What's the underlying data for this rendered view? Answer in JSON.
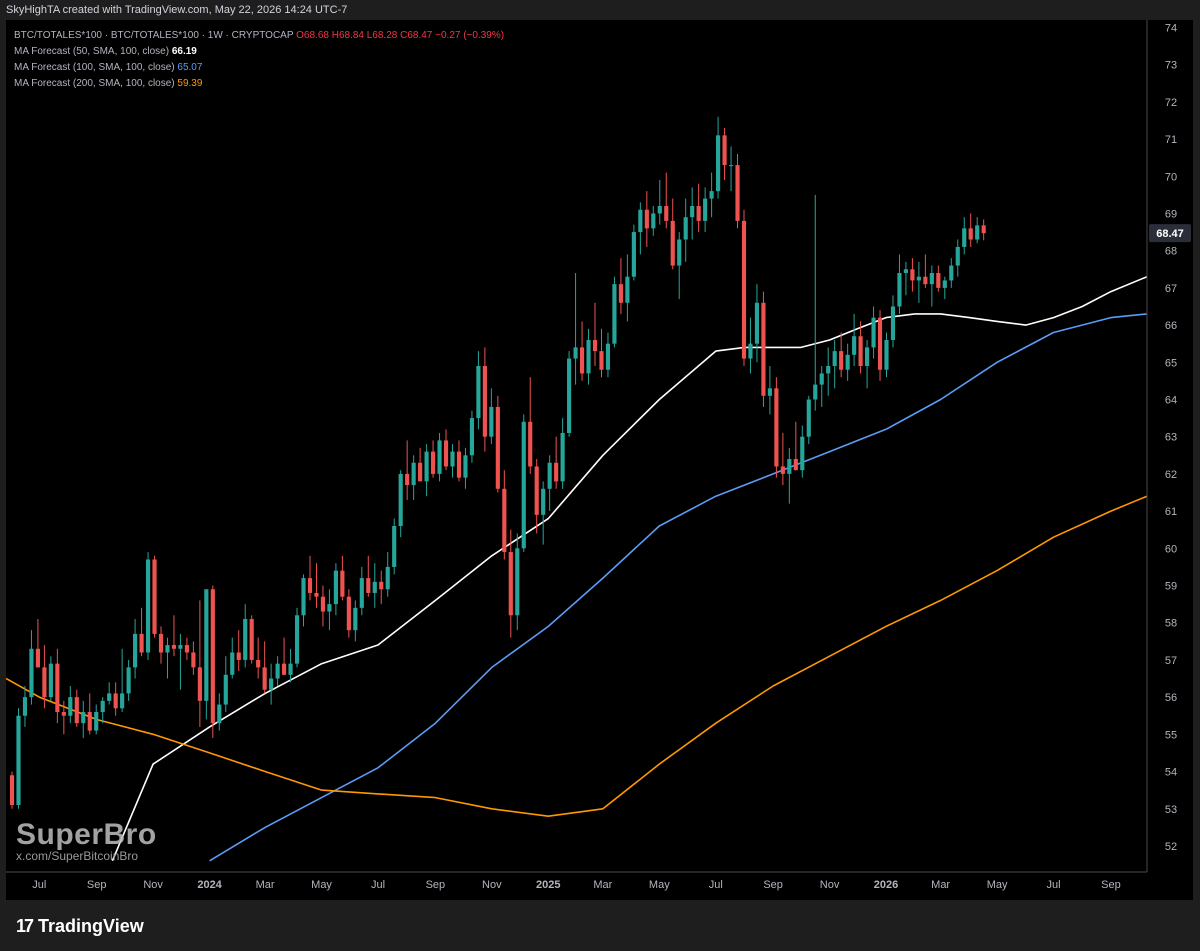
{
  "header": {
    "text": "SkyHighTA created with TradingView.com, May 22, 2026 14:24 UTC-7"
  },
  "legend": {
    "symbol": "BTC/TOTALES*100 · BTC/TOTALES*100 · 1W · CRYPTOCAP",
    "ohlc": "O68.68  H68.84  L68.28  C68.47  −0.27 (−0.39%)",
    "ma50_label": "MA Forecast (50, SMA, 100, close)",
    "ma50_value": "66.19",
    "ma100_label": "MA Forecast (100, SMA, 100, close)",
    "ma100_value": "65.07",
    "ma200_label": "MA Forecast (200, SMA, 100, close)",
    "ma200_value": "59.39"
  },
  "watermark": {
    "brand": "SuperBro",
    "sub": "x.com/SuperBitcoinBro"
  },
  "footer": {
    "brand": "TradingView",
    "mark": "17"
  },
  "colors": {
    "up": "#26a69a",
    "down": "#ef5350",
    "ma50": "#ffffff",
    "ma100": "#5b9cf6",
    "ma200": "#ff9800",
    "background": "#000000"
  },
  "chart_data": {
    "type": "line",
    "price_label": "68.47",
    "ylim": [
      51.3,
      74.2
    ],
    "y_ticks": [
      "52",
      "53",
      "54",
      "55",
      "56",
      "57",
      "58",
      "59",
      "60",
      "61",
      "62",
      "63",
      "64",
      "65",
      "66",
      "67",
      "68",
      "69",
      "70",
      "71",
      "72",
      "73",
      "74"
    ],
    "x_ticks": [
      "Jul",
      "Sep",
      "Nov",
      "2024",
      "Mar",
      "May",
      "Jul",
      "Sep",
      "Nov",
      "2025",
      "Mar",
      "May",
      "Jul",
      "Sep",
      "Nov",
      "2026",
      "Mar",
      "May",
      "Jul",
      "Sep"
    ],
    "x_tick_dates": [
      "2023-07-01",
      "2023-09-01",
      "2023-11-01",
      "2024-01-01",
      "2024-03-01",
      "2024-05-01",
      "2024-07-01",
      "2024-09-01",
      "2024-11-01",
      "2025-01-01",
      "2025-03-01",
      "2025-05-01",
      "2025-07-01",
      "2025-09-01",
      "2025-11-01",
      "2026-01-01",
      "2026-03-01",
      "2026-05-01",
      "2026-07-01",
      "2026-09-01"
    ],
    "xlim": [
      "2023-05-26",
      "2026-10-10"
    ],
    "candle_interval": "1W",
    "candles_start": "2023-05-29",
    "candles_ohlc": [
      [
        53.9,
        54.0,
        53.0,
        53.1
      ],
      [
        53.1,
        55.7,
        53.0,
        55.5
      ],
      [
        55.5,
        56.3,
        55.2,
        56.0
      ],
      [
        56.0,
        57.8,
        55.8,
        57.3
      ],
      [
        57.3,
        58.1,
        56.8,
        56.8
      ],
      [
        56.8,
        57.4,
        55.7,
        56.0
      ],
      [
        56.0,
        57.1,
        55.9,
        56.9
      ],
      [
        56.9,
        57.3,
        55.3,
        55.6
      ],
      [
        55.6,
        55.9,
        55.0,
        55.5
      ],
      [
        55.5,
        56.3,
        55.3,
        56.0
      ],
      [
        56.0,
        56.2,
        55.2,
        55.3
      ],
      [
        55.3,
        55.9,
        54.9,
        55.6
      ],
      [
        55.6,
        56.1,
        55.0,
        55.1
      ],
      [
        55.1,
        55.8,
        55.0,
        55.6
      ],
      [
        55.6,
        56.0,
        55.3,
        55.9
      ],
      [
        55.9,
        56.4,
        55.8,
        56.1
      ],
      [
        56.1,
        56.4,
        55.5,
        55.7
      ],
      [
        55.7,
        57.3,
        55.6,
        56.1
      ],
      [
        56.1,
        57.0,
        55.9,
        56.8
      ],
      [
        56.8,
        58.1,
        56.5,
        57.7
      ],
      [
        57.7,
        58.4,
        57.1,
        57.2
      ],
      [
        57.2,
        59.9,
        57.0,
        59.7
      ],
      [
        59.7,
        59.8,
        57.6,
        57.7
      ],
      [
        57.7,
        57.9,
        56.9,
        57.2
      ],
      [
        57.2,
        57.6,
        56.5,
        57.4
      ],
      [
        57.4,
        58.2,
        57.1,
        57.3
      ],
      [
        57.3,
        57.7,
        56.2,
        57.4
      ],
      [
        57.4,
        57.6,
        57.0,
        57.2
      ],
      [
        57.2,
        57.5,
        56.6,
        56.8
      ],
      [
        56.8,
        58.6,
        55.2,
        55.9
      ],
      [
        55.9,
        57.3,
        55.4,
        58.9
      ],
      [
        58.9,
        59.0,
        54.9,
        55.3
      ],
      [
        55.3,
        56.1,
        55.1,
        55.8
      ],
      [
        55.8,
        57.1,
        55.6,
        56.6
      ],
      [
        56.6,
        57.6,
        56.5,
        57.2
      ],
      [
        57.2,
        57.8,
        56.7,
        57.0
      ],
      [
        57.0,
        58.5,
        56.8,
        58.1
      ],
      [
        58.1,
        58.2,
        56.9,
        57.0
      ],
      [
        57.0,
        57.6,
        56.5,
        56.8
      ],
      [
        56.8,
        57.5,
        56.1,
        56.2
      ],
      [
        56.2,
        56.9,
        55.8,
        56.5
      ],
      [
        56.5,
        57.1,
        56.3,
        56.9
      ],
      [
        56.9,
        57.6,
        56.6,
        56.6
      ],
      [
        56.6,
        57.3,
        56.4,
        56.9
      ],
      [
        56.9,
        58.4,
        56.8,
        58.2
      ],
      [
        58.2,
        59.3,
        57.9,
        59.2
      ],
      [
        59.2,
        59.8,
        58.6,
        58.8
      ],
      [
        58.8,
        59.6,
        58.4,
        58.7
      ],
      [
        58.7,
        59.0,
        57.9,
        58.3
      ],
      [
        58.3,
        58.9,
        57.8,
        58.5
      ],
      [
        58.5,
        59.6,
        58.2,
        59.4
      ],
      [
        59.4,
        59.8,
        58.6,
        58.7
      ],
      [
        58.7,
        58.9,
        57.6,
        57.8
      ],
      [
        57.8,
        58.6,
        57.5,
        58.4
      ],
      [
        58.4,
        59.5,
        58.2,
        59.2
      ],
      [
        59.2,
        59.8,
        58.7,
        58.8
      ],
      [
        58.8,
        59.6,
        58.4,
        59.1
      ],
      [
        59.1,
        59.4,
        58.5,
        58.9
      ],
      [
        58.9,
        59.9,
        58.7,
        59.5
      ],
      [
        59.5,
        60.8,
        59.3,
        60.6
      ],
      [
        60.6,
        62.1,
        60.3,
        62.0
      ],
      [
        62.0,
        62.9,
        61.3,
        61.7
      ],
      [
        61.7,
        62.5,
        61.3,
        62.3
      ],
      [
        62.3,
        62.7,
        61.8,
        61.8
      ],
      [
        61.8,
        62.8,
        61.4,
        62.6
      ],
      [
        62.6,
        62.9,
        61.9,
        62.0
      ],
      [
        62.0,
        63.1,
        61.8,
        62.9
      ],
      [
        62.9,
        63.2,
        62.1,
        62.2
      ],
      [
        62.2,
        62.8,
        61.9,
        62.6
      ],
      [
        62.6,
        62.9,
        61.8,
        61.9
      ],
      [
        61.9,
        62.7,
        61.6,
        62.5
      ],
      [
        62.5,
        63.7,
        62.3,
        63.5
      ],
      [
        63.5,
        65.3,
        63.2,
        64.9
      ],
      [
        64.9,
        65.4,
        62.6,
        63.0
      ],
      [
        63.0,
        64.3,
        62.8,
        63.8
      ],
      [
        63.8,
        64.1,
        61.5,
        61.6
      ],
      [
        61.6,
        62.1,
        59.7,
        59.9
      ],
      [
        59.9,
        60.5,
        57.6,
        58.2
      ],
      [
        58.2,
        60.4,
        57.8,
        60.0
      ],
      [
        60.0,
        63.6,
        59.9,
        63.4
      ],
      [
        63.4,
        64.6,
        62.0,
        62.2
      ],
      [
        62.2,
        62.4,
        60.4,
        60.9
      ],
      [
        60.9,
        61.8,
        60.1,
        61.6
      ],
      [
        61.6,
        62.5,
        61.0,
        62.3
      ],
      [
        62.3,
        63.0,
        61.6,
        61.8
      ],
      [
        61.8,
        63.5,
        61.6,
        63.1
      ],
      [
        63.1,
        65.3,
        63.0,
        65.1
      ],
      [
        65.1,
        67.4,
        64.4,
        65.4
      ],
      [
        65.4,
        66.1,
        64.5,
        64.7
      ],
      [
        64.7,
        65.9,
        64.4,
        65.6
      ],
      [
        65.6,
        66.6,
        64.9,
        65.3
      ],
      [
        65.3,
        65.9,
        64.6,
        64.8
      ],
      [
        64.8,
        65.8,
        64.6,
        65.5
      ],
      [
        65.5,
        67.3,
        65.4,
        67.1
      ],
      [
        67.1,
        67.8,
        66.3,
        66.6
      ],
      [
        66.6,
        67.9,
        66.1,
        67.3
      ],
      [
        67.3,
        68.7,
        67.2,
        68.5
      ],
      [
        68.5,
        69.3,
        67.9,
        69.1
      ],
      [
        69.1,
        69.6,
        68.1,
        68.6
      ],
      [
        68.6,
        69.2,
        68.4,
        69.0
      ],
      [
        69.0,
        69.9,
        68.7,
        69.2
      ],
      [
        69.2,
        70.1,
        68.6,
        68.8
      ],
      [
        68.8,
        69.4,
        67.5,
        67.6
      ],
      [
        67.6,
        68.5,
        66.7,
        68.3
      ],
      [
        68.3,
        69.4,
        67.7,
        68.9
      ],
      [
        68.9,
        69.7,
        68.3,
        69.2
      ],
      [
        69.2,
        69.8,
        68.5,
        68.8
      ],
      [
        68.8,
        69.7,
        68.5,
        69.4
      ],
      [
        69.4,
        70.1,
        68.9,
        69.6
      ],
      [
        69.6,
        71.6,
        69.4,
        71.1
      ],
      [
        71.1,
        71.3,
        69.9,
        70.3
      ],
      [
        70.3,
        70.8,
        69.6,
        70.3
      ],
      [
        70.3,
        70.6,
        68.6,
        68.8
      ],
      [
        68.8,
        69.1,
        64.9,
        65.1
      ],
      [
        65.1,
        66.2,
        64.7,
        65.5
      ],
      [
        65.5,
        67.1,
        65.0,
        66.6
      ],
      [
        66.6,
        66.9,
        63.8,
        64.1
      ],
      [
        64.1,
        64.9,
        63.6,
        64.3
      ],
      [
        64.3,
        64.6,
        61.9,
        62.2
      ],
      [
        62.2,
        63.1,
        61.7,
        62.0
      ],
      [
        62.0,
        62.7,
        61.2,
        62.4
      ],
      [
        62.4,
        63.4,
        62.1,
        62.1
      ],
      [
        62.1,
        63.3,
        61.9,
        63.0
      ],
      [
        63.0,
        64.1,
        62.8,
        64.0
      ],
      [
        64.0,
        69.5,
        63.7,
        64.4
      ],
      [
        64.4,
        64.9,
        63.8,
        64.7
      ],
      [
        64.7,
        65.4,
        64.1,
        64.9
      ],
      [
        64.9,
        65.6,
        64.3,
        65.3
      ],
      [
        65.3,
        65.8,
        64.6,
        64.8
      ],
      [
        64.8,
        65.5,
        64.5,
        65.2
      ],
      [
        65.2,
        66.3,
        64.9,
        65.7
      ],
      [
        65.7,
        66.1,
        64.7,
        64.9
      ],
      [
        64.9,
        65.6,
        64.3,
        65.4
      ],
      [
        65.4,
        66.5,
        65.1,
        66.2
      ],
      [
        66.2,
        66.4,
        64.5,
        64.8
      ],
      [
        64.8,
        65.8,
        64.6,
        65.6
      ],
      [
        65.6,
        66.8,
        65.4,
        66.5
      ],
      [
        66.5,
        67.9,
        66.3,
        67.4
      ],
      [
        67.4,
        67.7,
        66.8,
        67.5
      ],
      [
        67.5,
        67.8,
        66.9,
        67.2
      ],
      [
        67.2,
        67.7,
        66.6,
        67.3
      ],
      [
        67.3,
        67.9,
        67.0,
        67.1
      ],
      [
        67.1,
        67.6,
        66.5,
        67.4
      ],
      [
        67.4,
        67.6,
        66.9,
        67.0
      ],
      [
        67.0,
        67.3,
        66.7,
        67.2
      ],
      [
        67.2,
        67.8,
        67.0,
        67.6
      ],
      [
        67.6,
        68.3,
        67.3,
        68.1
      ],
      [
        68.1,
        68.9,
        67.9,
        68.6
      ],
      [
        68.6,
        69.0,
        68.1,
        68.3
      ],
      [
        68.3,
        68.9,
        68.2,
        68.68
      ],
      [
        68.68,
        68.84,
        68.28,
        68.47
      ]
    ],
    "series": [
      {
        "name": "MA Forecast (50, SMA, 100, close)",
        "color": "#ffffff",
        "x": [
          "2023-09-18",
          "2023-11-01",
          "2024-01-01",
          "2024-03-01",
          "2024-05-01",
          "2024-07-01",
          "2024-09-01",
          "2024-11-01",
          "2025-01-01",
          "2025-03-01",
          "2025-05-01",
          "2025-07-01",
          "2025-08-01",
          "2025-09-01",
          "2025-10-01",
          "2025-11-01",
          "2025-12-01",
          "2026-01-01",
          "2026-02-01",
          "2026-03-01",
          "2026-04-01",
          "2026-05-01",
          "2026-06-01",
          "2026-07-01",
          "2026-08-01",
          "2026-09-01",
          "2026-10-10"
        ],
        "y": [
          51.6,
          54.2,
          55.2,
          56.1,
          56.9,
          57.4,
          58.6,
          59.8,
          60.8,
          62.5,
          64.0,
          65.3,
          65.4,
          65.4,
          65.4,
          65.6,
          65.9,
          66.2,
          66.3,
          66.3,
          66.2,
          66.1,
          66.0,
          66.2,
          66.5,
          66.9,
          67.3
        ]
      },
      {
        "name": "MA Forecast (100, SMA, 100, close)",
        "color": "#5b9cf6",
        "x": [
          "2024-01-01",
          "2024-03-01",
          "2024-05-01",
          "2024-07-01",
          "2024-09-01",
          "2024-11-01",
          "2025-01-01",
          "2025-03-01",
          "2025-05-01",
          "2025-07-01",
          "2025-09-01",
          "2025-11-01",
          "2026-01-01",
          "2026-03-01",
          "2026-05-01",
          "2026-07-01",
          "2026-09-01",
          "2026-10-10"
        ],
        "y": [
          51.6,
          52.5,
          53.3,
          54.1,
          55.3,
          56.8,
          57.9,
          59.2,
          60.6,
          61.4,
          62.0,
          62.6,
          63.2,
          64.0,
          65.0,
          65.8,
          66.2,
          66.3
        ]
      },
      {
        "name": "MA Forecast (200, SMA, 100, close)",
        "color": "#ff9800",
        "x": [
          "2023-05-26",
          "2023-07-01",
          "2023-09-01",
          "2023-11-01",
          "2024-01-01",
          "2024-03-01",
          "2024-05-01",
          "2024-07-01",
          "2024-09-01",
          "2024-11-01",
          "2025-01-01",
          "2025-03-01",
          "2025-05-01",
          "2025-07-01",
          "2025-09-01",
          "2025-11-01",
          "2026-01-01",
          "2026-03-01",
          "2026-05-01",
          "2026-07-01",
          "2026-09-01",
          "2026-10-10"
        ],
        "y": [
          56.5,
          56.0,
          55.4,
          55.0,
          54.5,
          54.0,
          53.5,
          53.4,
          53.3,
          53.0,
          52.8,
          53.0,
          54.2,
          55.3,
          56.3,
          57.1,
          57.9,
          58.6,
          59.4,
          60.3,
          61.0,
          61.4
        ]
      }
    ]
  }
}
